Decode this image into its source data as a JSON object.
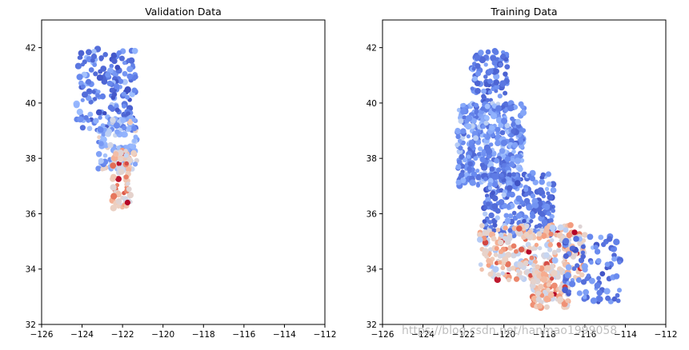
{
  "chart_data": [
    {
      "type": "scatter",
      "title": "Validation Data",
      "xlabel": "",
      "ylabel": "",
      "xlim": [
        -126,
        -112
      ],
      "ylim": [
        32,
        43
      ],
      "xticks": [
        -126,
        -124,
        -122,
        -120,
        -118,
        -116,
        -114,
        -112
      ],
      "yticks": [
        32,
        34,
        36,
        38,
        40,
        42
      ],
      "grid": false,
      "colormap": [
        "#3b4cc0",
        "#6788ee",
        "#9abbff",
        "#c9d7f0",
        "#edd1c2",
        "#f7a889",
        "#e26952",
        "#b40426"
      ],
      "regions": [
        {
          "lon": [
            -124.3,
            -121.3
          ],
          "lat": [
            39.0,
            42.0
          ],
          "value_range": [
            0.0,
            0.35
          ]
        },
        {
          "lon": [
            -123.2,
            -121.3
          ],
          "lat": [
            37.6,
            39.5
          ],
          "value_range": [
            0.1,
            0.6
          ]
        },
        {
          "lon": [
            -122.5,
            -121.6
          ],
          "lat": [
            36.2,
            38.3
          ],
          "value_range": [
            0.4,
            1.0
          ]
        }
      ]
    },
    {
      "type": "scatter",
      "title": "Training Data",
      "xlabel": "",
      "ylabel": "",
      "xlim": [
        -126,
        -112
      ],
      "ylim": [
        32,
        43
      ],
      "xticks": [
        -126,
        -124,
        -122,
        -120,
        -118,
        -116,
        -114,
        -112
      ],
      "yticks": [
        32,
        34,
        36,
        38,
        40,
        42
      ],
      "grid": false,
      "colormap": [
        "#3b4cc0",
        "#6788ee",
        "#9abbff",
        "#c9d7f0",
        "#edd1c2",
        "#f7a889",
        "#e26952",
        "#b40426"
      ],
      "regions": [
        {
          "lon": [
            -121.6,
            -119.8
          ],
          "lat": [
            39.5,
            41.9
          ],
          "value_range": [
            0.0,
            0.3
          ]
        },
        {
          "lon": [
            -122.3,
            -119.0
          ],
          "lat": [
            37.0,
            40.0
          ],
          "value_range": [
            0.05,
            0.4
          ]
        },
        {
          "lon": [
            -121.0,
            -117.5
          ],
          "lat": [
            35.2,
            37.5
          ],
          "value_range": [
            0.0,
            0.35
          ]
        },
        {
          "lon": [
            -121.2,
            -116.0
          ],
          "lat": [
            33.6,
            35.6
          ],
          "value_range": [
            0.3,
            1.0
          ]
        },
        {
          "lon": [
            -118.6,
            -116.8
          ],
          "lat": [
            32.6,
            34.2
          ],
          "value_range": [
            0.4,
            1.0
          ]
        },
        {
          "lon": [
            -117.0,
            -114.2
          ],
          "lat": [
            32.8,
            35.2
          ],
          "value_range": [
            0.0,
            0.3
          ]
        }
      ]
    }
  ],
  "watermark": "https://blog.csdn.net/hanmao1999058"
}
